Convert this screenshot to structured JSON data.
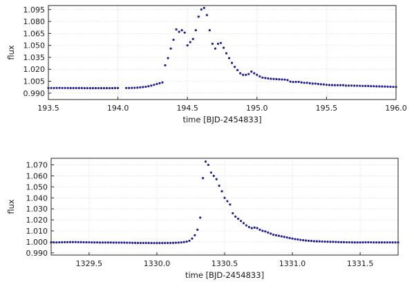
{
  "colors": {
    "points": "#1f1f8f",
    "grid": "#cfcfcf",
    "frame": "#222222"
  },
  "chart_data": [
    {
      "type": "scatter",
      "xlabel": "time [BJD-2454833]",
      "ylabel": "flux",
      "xlim": [
        193.5,
        196.0
      ],
      "ylim": [
        0.982,
        1.1
      ],
      "xticks": [
        193.5,
        194.0,
        194.5,
        195.0,
        195.5,
        196.0
      ],
      "xtick_labels": [
        "193.5",
        "194.0",
        "194.5",
        "195.0",
        "195.5",
        "196.0"
      ],
      "yticks": [
        0.99,
        1.005,
        1.02,
        1.035,
        1.05,
        1.065,
        1.08,
        1.095
      ],
      "ytick_labels": [
        "0.990",
        "1.005",
        "1.020",
        "1.035",
        "1.050",
        "1.065",
        "1.080",
        "1.095"
      ],
      "grid": true,
      "series": [
        {
          "x": [
            193.5,
            193.52,
            193.54,
            193.56,
            193.58,
            193.6,
            193.62,
            193.64,
            193.66,
            193.68,
            193.7,
            193.72,
            193.74,
            193.76,
            193.78,
            193.8,
            193.82,
            193.84,
            193.86,
            193.88,
            193.9,
            193.92,
            193.94,
            193.96,
            193.98,
            194.0,
            194.06,
            194.08,
            194.1,
            194.12,
            194.14,
            194.16,
            194.18,
            194.2,
            194.22,
            194.24,
            194.26,
            194.28,
            194.3,
            194.32,
            194.34,
            194.36,
            194.38,
            194.4,
            194.42,
            194.44,
            194.46,
            194.48,
            194.5,
            194.52,
            194.54,
            194.56,
            194.58,
            194.6,
            194.62,
            194.64,
            194.66,
            194.68,
            194.7,
            194.72,
            194.74,
            194.76,
            194.78,
            194.8,
            194.82,
            194.84,
            194.86,
            194.88,
            194.9,
            194.92,
            194.94,
            194.96,
            194.98,
            195.0,
            195.02,
            195.04,
            195.06,
            195.08,
            195.1,
            195.12,
            195.14,
            195.16,
            195.18,
            195.2,
            195.22,
            195.24,
            195.26,
            195.28,
            195.3,
            195.32,
            195.34,
            195.36,
            195.38,
            195.4,
            195.42,
            195.44,
            195.46,
            195.48,
            195.5,
            195.52,
            195.54,
            195.56,
            195.58,
            195.6,
            195.62,
            195.64,
            195.66,
            195.68,
            195.7,
            195.72,
            195.74,
            195.76,
            195.78,
            195.8,
            195.82,
            195.84,
            195.86,
            195.88,
            195.9,
            195.92,
            195.94,
            195.96,
            195.98,
            196.0
          ],
          "y": [
            0.9965,
            0.9965,
            0.9965,
            0.9965,
            0.9966,
            0.9965,
            0.9965,
            0.9965,
            0.9964,
            0.9964,
            0.9964,
            0.9964,
            0.9964,
            0.9963,
            0.9963,
            0.9963,
            0.9963,
            0.9963,
            0.9963,
            0.9963,
            0.9963,
            0.9963,
            0.9963,
            0.9963,
            0.9964,
            0.9964,
            0.9965,
            0.9965,
            0.9966,
            0.9967,
            0.9969,
            0.9972,
            0.9976,
            0.998,
            0.9987,
            0.9995,
            1.0005,
            1.0015,
            1.0025,
            1.0035,
            1.025,
            1.034,
            1.046,
            1.057,
            1.07,
            1.067,
            1.069,
            1.066,
            1.05,
            1.054,
            1.058,
            1.069,
            1.086,
            1.095,
            1.097,
            1.088,
            1.069,
            1.052,
            1.046,
            1.052,
            1.053,
            1.047,
            1.04,
            1.034,
            1.028,
            1.023,
            1.019,
            1.015,
            1.013,
            1.013,
            1.014,
            1.017,
            1.015,
            1.013,
            1.011,
            1.0095,
            1.009,
            1.0085,
            1.008,
            1.0078,
            1.0076,
            1.0074,
            1.0072,
            1.007,
            1.0064,
            1.0045,
            1.004,
            1.0041,
            1.0042,
            1.0035,
            1.003,
            1.003,
            1.0025,
            1.002,
            1.002,
            1.0015,
            1.0012,
            1.001,
            1.0005,
            1.0002,
            1.0001,
            1.0,
            1.0,
            1.0,
            1.0,
            0.9995,
            0.9995,
            0.9995,
            0.9994,
            0.9993,
            0.9992,
            0.9991,
            0.999,
            0.999,
            0.9988,
            0.9987,
            0.9986,
            0.9985,
            0.9984,
            0.9983,
            0.9982,
            0.998,
            0.9979,
            0.9978
          ]
        }
      ]
    },
    {
      "type": "scatter",
      "xlabel": "time [BJD-2454833]",
      "ylabel": "flux",
      "xlim": [
        1329.22,
        1331.78
      ],
      "ylim": [
        0.988,
        1.076
      ],
      "xticks": [
        1329.5,
        1330.0,
        1330.5,
        1331.0,
        1331.5
      ],
      "xtick_labels": [
        "1329.5",
        "1330.0",
        "1330.5",
        "1331.0",
        "1331.5"
      ],
      "yticks": [
        0.99,
        1.0,
        1.01,
        1.02,
        1.03,
        1.04,
        1.05,
        1.06,
        1.07
      ],
      "ytick_labels": [
        "0.990",
        "1.000",
        "1.010",
        "1.020",
        "1.030",
        "1.040",
        "1.050",
        "1.060",
        "1.070"
      ],
      "grid": true,
      "series": [
        {
          "x": [
            1329.22,
            1329.24,
            1329.26,
            1329.28,
            1329.3,
            1329.32,
            1329.34,
            1329.36,
            1329.38,
            1329.4,
            1329.42,
            1329.44,
            1329.46,
            1329.48,
            1329.5,
            1329.52,
            1329.54,
            1329.56,
            1329.58,
            1329.6,
            1329.62,
            1329.64,
            1329.66,
            1329.68,
            1329.7,
            1329.72,
            1329.74,
            1329.76,
            1329.78,
            1329.8,
            1329.82,
            1329.84,
            1329.86,
            1329.88,
            1329.9,
            1329.92,
            1329.94,
            1329.96,
            1329.98,
            1330.0,
            1330.02,
            1330.04,
            1330.06,
            1330.08,
            1330.1,
            1330.12,
            1330.14,
            1330.16,
            1330.18,
            1330.2,
            1330.22,
            1330.24,
            1330.26,
            1330.28,
            1330.3,
            1330.32,
            1330.34,
            1330.36,
            1330.38,
            1330.4,
            1330.42,
            1330.44,
            1330.46,
            1330.48,
            1330.5,
            1330.52,
            1330.54,
            1330.56,
            1330.58,
            1330.6,
            1330.62,
            1330.64,
            1330.66,
            1330.68,
            1330.7,
            1330.72,
            1330.74,
            1330.76,
            1330.78,
            1330.8,
            1330.82,
            1330.84,
            1330.86,
            1330.88,
            1330.9,
            1330.92,
            1330.94,
            1330.96,
            1330.98,
            1331.0,
            1331.02,
            1331.04,
            1331.06,
            1331.08,
            1331.1,
            1331.12,
            1331.14,
            1331.16,
            1331.18,
            1331.2,
            1331.22,
            1331.24,
            1331.26,
            1331.28,
            1331.3,
            1331.32,
            1331.34,
            1331.36,
            1331.38,
            1331.4,
            1331.42,
            1331.44,
            1331.46,
            1331.48,
            1331.5,
            1331.52,
            1331.54,
            1331.56,
            1331.58,
            1331.6,
            1331.62,
            1331.64,
            1331.66,
            1331.68,
            1331.7,
            1331.72,
            1331.74,
            1331.76,
            1331.78
          ],
          "y": [
            0.9995,
            0.9995,
            0.9995,
            0.9996,
            0.9996,
            0.9997,
            0.9997,
            0.9998,
            0.9998,
            0.9998,
            0.9997,
            0.9997,
            0.9996,
            0.9996,
            0.9996,
            0.9995,
            0.9995,
            0.9995,
            0.9994,
            0.9994,
            0.9994,
            0.9994,
            0.9994,
            0.9993,
            0.9993,
            0.9993,
            0.9993,
            0.9993,
            0.9992,
            0.9992,
            0.9991,
            0.9991,
            0.999,
            0.999,
            0.999,
            0.999,
            0.999,
            0.9989,
            0.9989,
            0.9989,
            0.9989,
            0.9989,
            0.999,
            0.999,
            0.999,
            0.9991,
            0.9992,
            0.9993,
            0.9995,
            0.9998,
            1.0002,
            1.001,
            1.003,
            1.006,
            1.011,
            1.022,
            1.058,
            1.073,
            1.07,
            1.063,
            1.06,
            1.057,
            1.051,
            1.046,
            1.04,
            1.037,
            1.034,
            1.026,
            1.023,
            1.021,
            1.019,
            1.017,
            1.015,
            1.0135,
            1.0125,
            1.013,
            1.0125,
            1.011,
            1.01,
            1.0095,
            1.0085,
            1.0075,
            1.0065,
            1.006,
            1.0055,
            1.005,
            1.0045,
            1.004,
            1.0035,
            1.003,
            1.0025,
            1.0022,
            1.0018,
            1.0015,
            1.0012,
            1.001,
            1.0008,
            1.0006,
            1.0005,
            1.0004,
            1.0003,
            1.0002,
            1.0001,
            1.0,
            1.0,
            0.9999,
            0.9998,
            0.9997,
            0.9997,
            0.9996,
            0.9996,
            0.9995,
            0.9995,
            0.9995,
            0.9995,
            0.9995,
            0.9996,
            0.9996,
            0.9996,
            0.9995,
            0.9995,
            0.9995,
            0.9995,
            0.9995,
            0.9995,
            0.9995,
            0.9995,
            0.9995,
            0.9995
          ]
        }
      ]
    }
  ]
}
